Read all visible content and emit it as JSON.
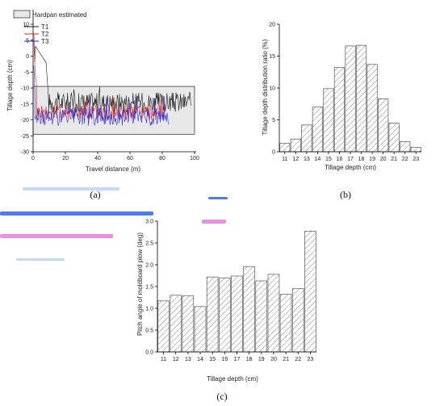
{
  "chart_data": [
    {
      "id": "a",
      "type": "line",
      "panel_label": "(a)",
      "xlabel": "Travel distance (m)",
      "ylabel": "Tillage depth (cm)",
      "xlim": [
        0,
        100
      ],
      "ylim": [
        -30,
        10
      ],
      "xticks": [
        0,
        20,
        40,
        60,
        80,
        100
      ],
      "yticks": [
        10,
        5,
        0,
        -5,
        -10,
        -15,
        -20,
        -25,
        -30
      ],
      "legend_position": "top-left",
      "hardpan": {
        "label": "Hardpan estimated",
        "y_top": -9.5,
        "y_bottom": -24.5,
        "x_start": 0,
        "x_end": 100,
        "color": "#e8e8e8"
      },
      "series": [
        {
          "name": "T1",
          "color": "#1a1a1a",
          "x_end": 98,
          "mean": -14.5,
          "spread": 3.2,
          "spikes": [
            [
              0.5,
              5
            ],
            [
              1,
              -2
            ],
            [
              1.5,
              3
            ],
            [
              8,
              -2
            ],
            [
              9,
              -9
            ]
          ]
        },
        {
          "name": "T2",
          "color": "#d42020",
          "x_end": 82,
          "mean": -17.5,
          "spread": 2.6,
          "spikes": [
            [
              0.5,
              7
            ],
            [
              1.2,
              -5
            ],
            [
              2,
              -8
            ]
          ]
        },
        {
          "name": "T3",
          "color": "#2b2bd6",
          "x_end": 84,
          "mean": -19.0,
          "spread": 2.8,
          "spikes": [
            [
              0.4,
              -3
            ],
            [
              1.0,
              -10
            ]
          ]
        }
      ]
    },
    {
      "id": "b",
      "type": "bar",
      "panel_label": "(b)",
      "xlabel": "Tillage depth (cm)",
      "ylabel": "Tillage depth distribution ratio (%)",
      "ylim": [
        0,
        20
      ],
      "yticks": [
        0,
        5,
        10,
        15,
        20
      ],
      "categories": [
        "11",
        "12",
        "13",
        "14",
        "15",
        "16",
        "17",
        "18",
        "19",
        "20",
        "21",
        "22",
        "23"
      ],
      "values": [
        1.3,
        2.0,
        4.2,
        7.0,
        9.9,
        13.2,
        16.6,
        16.7,
        13.7,
        8.3,
        4.5,
        1.6,
        0.7
      ]
    },
    {
      "id": "c",
      "type": "bar",
      "panel_label": "(c)",
      "xlabel": "Tillage depth (cm)",
      "ylabel": "Pitch angle of moldboard plow (deg)",
      "ylim": [
        0,
        3.0
      ],
      "yticks": [
        0,
        0.5,
        1.0,
        1.5,
        2.0,
        2.5,
        3.0
      ],
      "categories": [
        "11",
        "12",
        "13",
        "14",
        "15",
        "16",
        "17",
        "18",
        "19",
        "20",
        "21",
        "22",
        "23"
      ],
      "values": [
        1.17,
        1.3,
        1.29,
        1.04,
        1.72,
        1.7,
        1.74,
        1.96,
        1.63,
        1.78,
        1.32,
        1.45,
        2.77
      ]
    }
  ],
  "colors": {
    "smear_blue": "#4a7df0",
    "smear_pink": "#e98ee0",
    "smear_light": "#c8d8f8"
  }
}
